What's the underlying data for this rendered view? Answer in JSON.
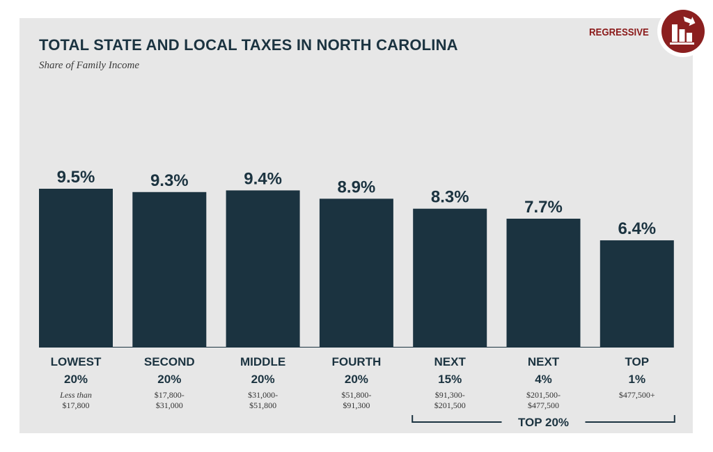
{
  "header": {
    "title": "TOTAL STATE AND LOCAL TAXES IN NORTH CAROLINA",
    "subtitle": "Share of Family Income",
    "badge_label": "REGRESSIVE",
    "badge_icon": "regressive-bar-chart-icon"
  },
  "colors": {
    "bar": "#1b3340",
    "panel": "#e7e7e7",
    "badge": "#8b1f1f",
    "text_dark": "#1b3340"
  },
  "chart_data": {
    "type": "bar",
    "title": "TOTAL STATE AND LOCAL TAXES IN NORTH CAROLINA",
    "subtitle": "Share of Family Income",
    "categories": [
      {
        "label": [
          "LOWEST",
          "20%"
        ],
        "range": [
          "Less than",
          "$17,800"
        ]
      },
      {
        "label": [
          "SECOND",
          "20%"
        ],
        "range": [
          "$17,800-",
          "$31,000"
        ]
      },
      {
        "label": [
          "MIDDLE",
          "20%"
        ],
        "range": [
          "$31,000-",
          "$51,800"
        ]
      },
      {
        "label": [
          "FOURTH",
          "20%"
        ],
        "range": [
          "$51,800-",
          "$91,300"
        ]
      },
      {
        "label": [
          "NEXT",
          "15%"
        ],
        "range": [
          "$91,300-",
          "$201,500"
        ]
      },
      {
        "label": [
          "NEXT",
          "4%"
        ],
        "range": [
          "$201,500-",
          "$477,500"
        ]
      },
      {
        "label": [
          "TOP",
          "1%"
        ],
        "range": [
          "$477,500+"
        ]
      }
    ],
    "values": [
      9.5,
      9.3,
      9.4,
      8.9,
      8.3,
      7.7,
      6.4
    ],
    "value_labels": [
      "9.5%",
      "9.3%",
      "9.4%",
      "8.9%",
      "8.3%",
      "7.7%",
      "6.4%"
    ],
    "ylim": [
      0,
      9.5
    ],
    "grid": false,
    "bracket": {
      "label": "TOP 20%",
      "from_category": 4,
      "to_category": 6
    }
  }
}
